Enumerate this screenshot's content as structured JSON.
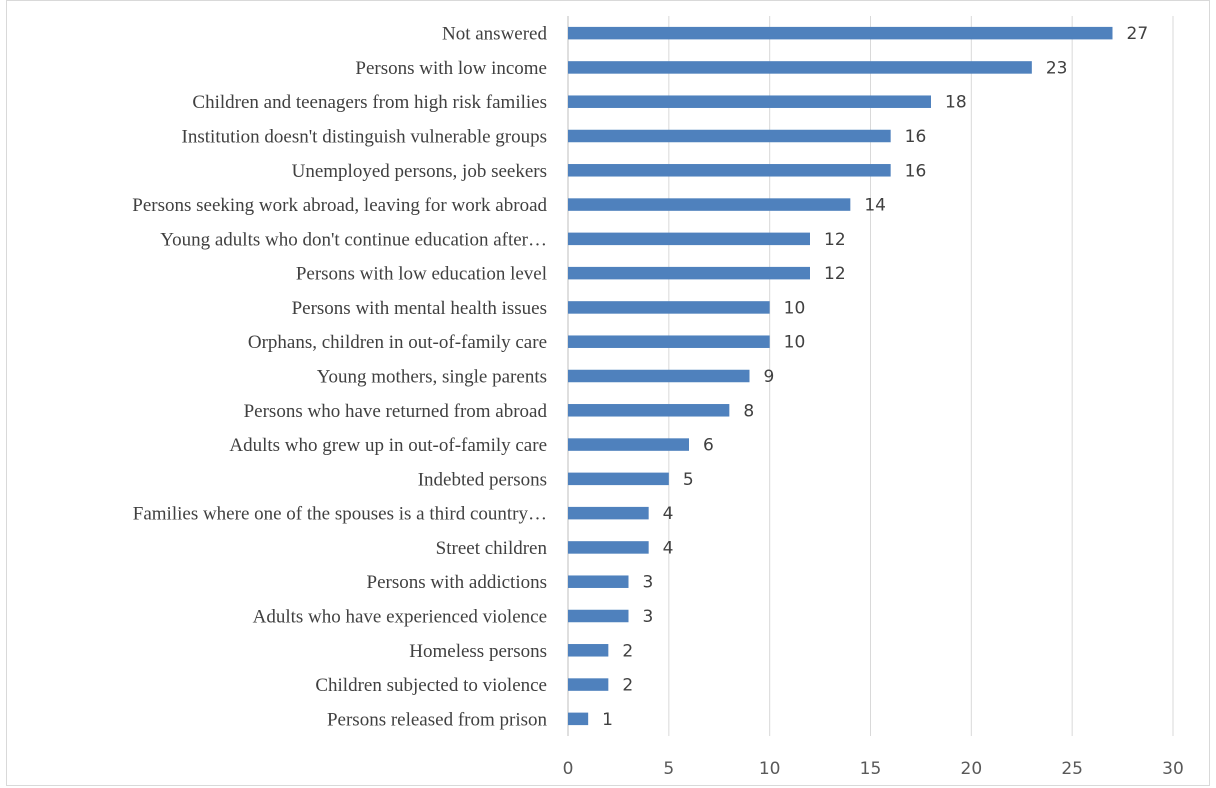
{
  "chart_data": {
    "type": "bar",
    "orientation": "horizontal",
    "categories": [
      "Not answered",
      "Persons with low income",
      "Children and teenagers from high risk families",
      "Institution doesn't distinguish vulnerable groups",
      "Unemployed persons, job seekers",
      "Persons seeking work abroad, leaving for work abroad",
      "Young adults who don't continue education after…",
      "Persons with low education level",
      "Persons with mental health issues",
      "Orphans, children in out-of-family care",
      "Young mothers, single parents",
      "Persons who have returned from abroad",
      "Adults who grew up in out-of-family care",
      "Indebted persons",
      "Families where one of the spouses is a third country…",
      "Street children",
      "Persons with addictions",
      "Adults who have experienced violence",
      "Homeless persons",
      "Children subjected to violence",
      "Persons released from prison"
    ],
    "values": [
      27,
      23,
      18,
      16,
      16,
      14,
      12,
      12,
      10,
      10,
      9,
      8,
      6,
      5,
      4,
      4,
      3,
      3,
      2,
      2,
      1
    ],
    "xlim": [
      0,
      30
    ],
    "xticks": [
      0,
      5,
      10,
      15,
      20,
      25,
      30
    ],
    "grid": "vertical",
    "legend": "none",
    "colors": {
      "bar": "#4f81bd",
      "grid": "#d9d9d9",
      "text": "#404040"
    }
  }
}
